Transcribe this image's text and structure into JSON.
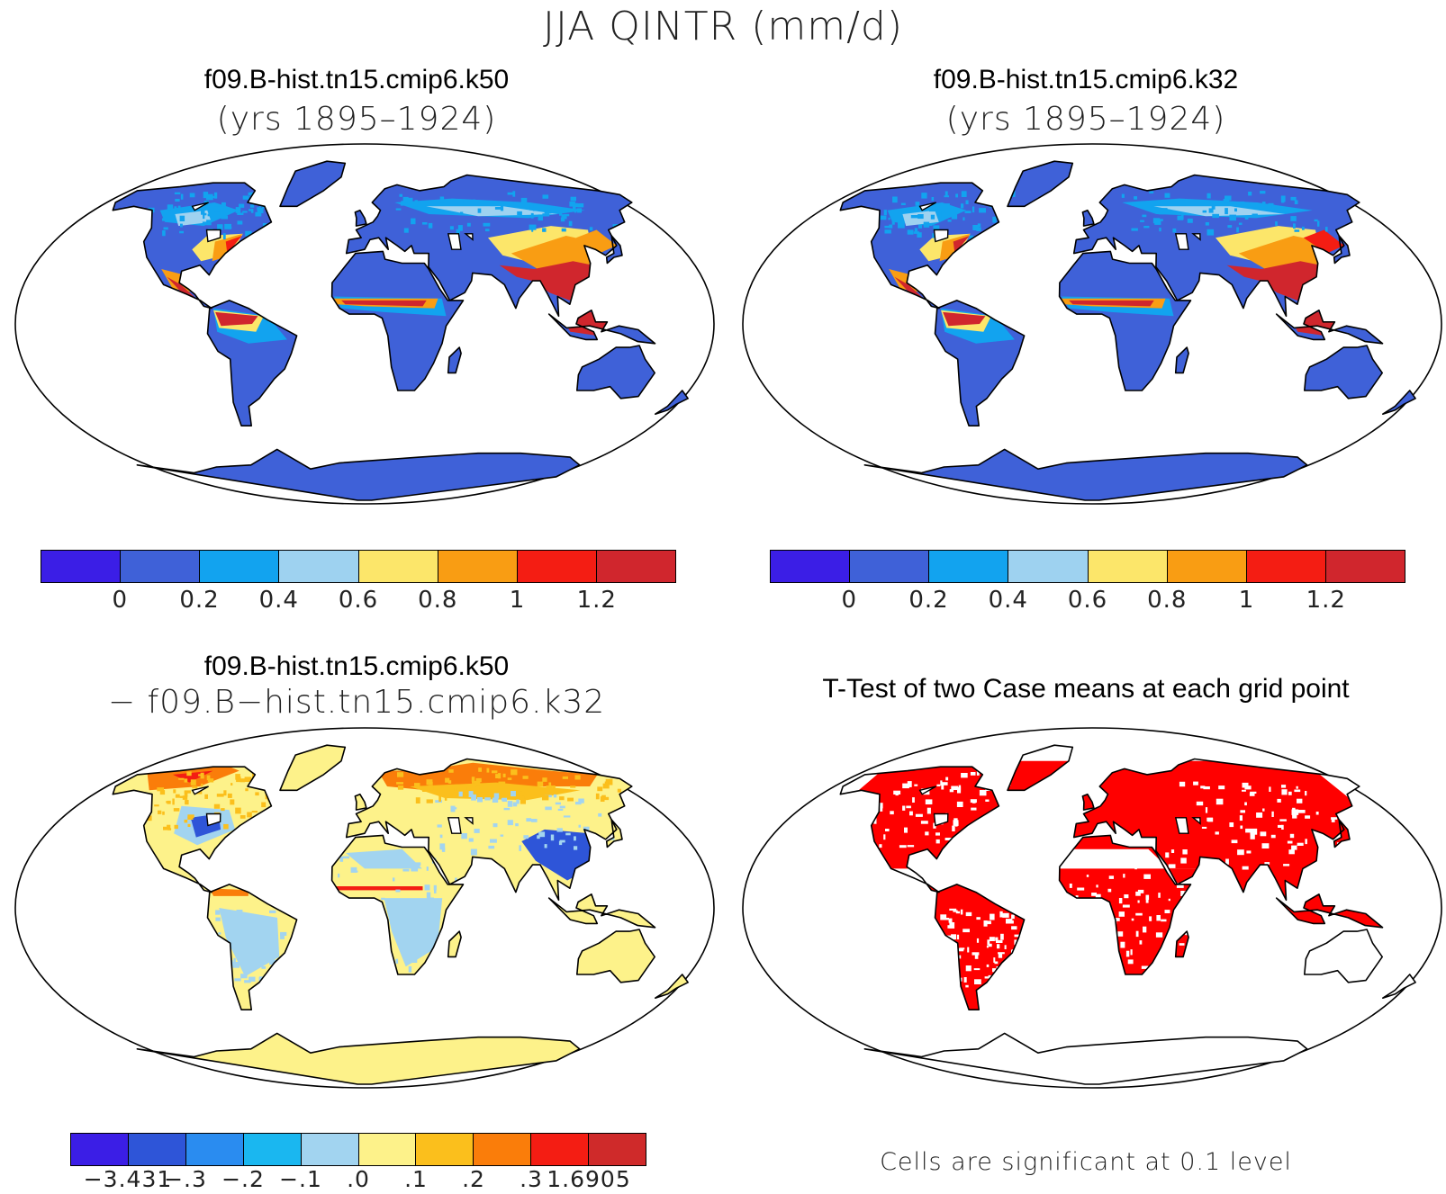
{
  "title": "JJA QINTR (mm/d)",
  "panels": [
    {
      "id": "k50",
      "title": "f09.B-hist.tn15.cmip6.k50",
      "subtitle": "(yrs 1895–1924)",
      "colorbar": {
        "colors": [
          "#3b1ee6",
          "#3f61d8",
          "#12a3ef",
          "#9ed2f0",
          "#fce66a",
          "#f99d13",
          "#f41d13",
          "#d0262d"
        ],
        "ticks": [
          "0",
          "0.2",
          "0.4",
          "0.6",
          "0.8",
          "1",
          "1.2"
        ]
      }
    },
    {
      "id": "k32",
      "title": "f09.B-hist.tn15.cmip6.k32",
      "subtitle": "(yrs 1895–1924)",
      "colorbar": {
        "colors": [
          "#3b1ee6",
          "#3f61d8",
          "#12a3ef",
          "#9ed2f0",
          "#fce66a",
          "#f99d13",
          "#f41d13",
          "#d0262d"
        ],
        "ticks": [
          "0",
          "0.2",
          "0.4",
          "0.6",
          "0.8",
          "1",
          "1.2"
        ]
      }
    },
    {
      "id": "diff",
      "title": "f09.B-hist.tn15.cmip6.k50",
      "subtitle": "− f09.B−hist.tn15.cmip6.k32",
      "colorbar": {
        "colors": [
          "#3b1ee6",
          "#2e55d8",
          "#2a8cf0",
          "#1ab7f0",
          "#a2d4f0",
          "#fdf28a",
          "#fbbf1c",
          "#fa7d0a",
          "#f41d13",
          "#cf2a2a"
        ],
        "ticks": [
          "−3.431",
          "−.3",
          "−.2",
          "−.1",
          ".0",
          ".1",
          ".2",
          ".3",
          "1.6905"
        ]
      }
    },
    {
      "id": "ttest",
      "title": "T-Test of two Case means at each grid point",
      "note": "Cells are significant at 0.1 level",
      "fill_color": "#ff0000"
    }
  ]
}
